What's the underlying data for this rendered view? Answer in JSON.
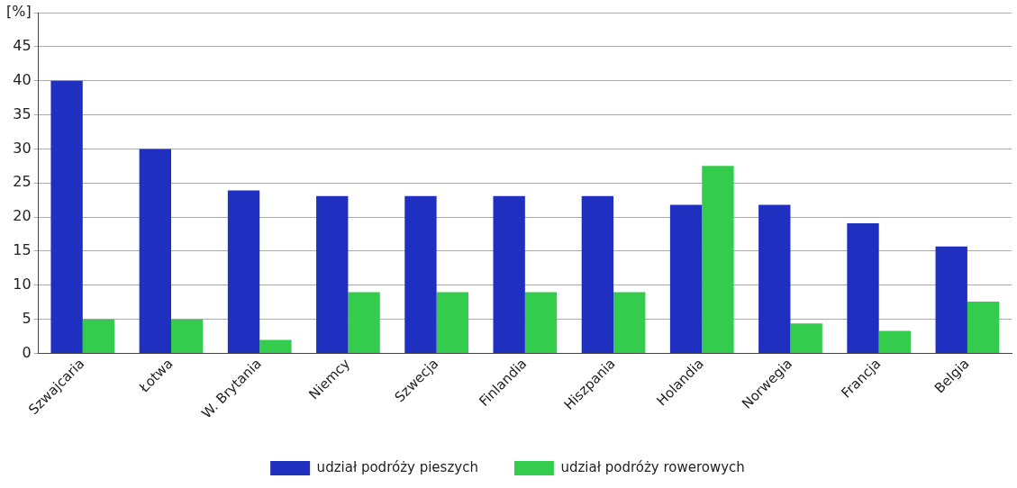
{
  "chart_data": {
    "type": "bar",
    "categories": [
      "Szwajcaria",
      "Łotwa",
      "W. Brytania",
      "Niemcy",
      "Szwecja",
      "Finlandia",
      "Hiszpania",
      "Holandia",
      "Norwegia",
      "Francja",
      "Belgia"
    ],
    "series": [
      {
        "name": "udział podróży pieszych",
        "color": "#1f2fbf",
        "values": [
          40,
          30,
          23.9,
          23.1,
          23.1,
          23.1,
          23.1,
          21.8,
          21.8,
          19.1,
          15.7
        ]
      },
      {
        "name": "udział podróży rowerowych",
        "color": "#33cc4d",
        "values": [
          5,
          5,
          2,
          9,
          9,
          9,
          9,
          27.5,
          4.4,
          3.3,
          7.6
        ]
      }
    ],
    "ylim": [
      0,
      50
    ],
    "yticks": [
      0,
      5,
      10,
      15,
      20,
      25,
      30,
      35,
      40,
      45,
      {
        "value": 50,
        "label": "[%]"
      }
    ],
    "grid": "y",
    "legend": "bottom"
  }
}
